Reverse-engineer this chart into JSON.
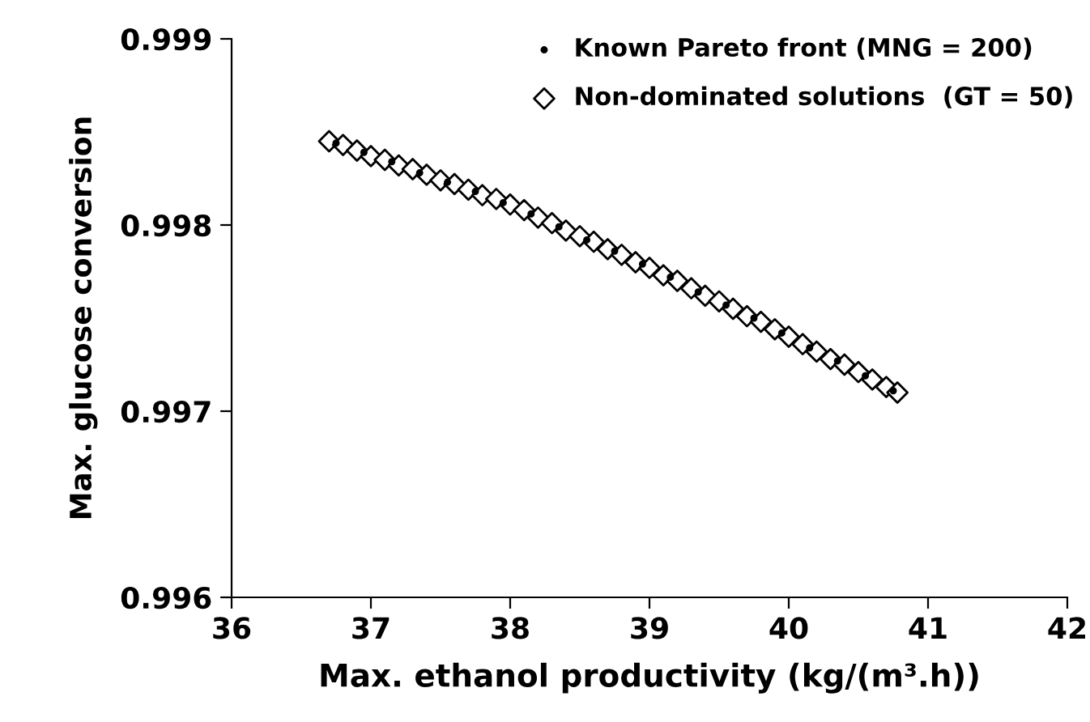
{
  "chart_data": {
    "type": "scatter",
    "xlabel": "Max. ethanol productivity (kg/(m³.h))",
    "ylabel": "Max. glucose conversion",
    "xlim": [
      36,
      42
    ],
    "xticks": [
      36,
      37,
      38,
      39,
      40,
      41,
      42
    ],
    "ylim": [
      0.996,
      0.999
    ],
    "yticks": [
      0.996,
      0.997,
      0.998,
      0.999
    ],
    "grid": false,
    "legend": "top right",
    "series": [
      {
        "name": "Known Pareto front (MNG = 200)",
        "color": "#000000",
        "marker": "circle",
        "x": [
          36.75,
          36.95,
          37.15,
          37.35,
          37.55,
          37.75,
          37.95,
          38.15,
          38.35,
          38.55,
          38.75,
          38.95,
          39.15,
          39.35,
          39.55,
          39.75,
          39.95,
          40.15,
          40.35,
          40.55,
          40.75
        ],
        "values": [
          0.99844,
          0.99839,
          0.99834,
          0.99828,
          0.99823,
          0.99818,
          0.99812,
          0.99806,
          0.99799,
          0.99792,
          0.99786,
          0.99779,
          0.99772,
          0.99764,
          0.99757,
          0.9975,
          0.99742,
          0.99734,
          0.99727,
          0.99719,
          0.99711
        ]
      },
      {
        "name": "Non-dominated solutions  (GT = 50)",
        "color": "#000000",
        "marker": "diamond",
        "x": [
          36.7,
          36.8,
          36.9,
          37.0,
          37.1,
          37.2,
          37.3,
          37.4,
          37.5,
          37.6,
          37.7,
          37.8,
          37.9,
          38.0,
          38.1,
          38.2,
          38.3,
          38.4,
          38.5,
          38.6,
          38.7,
          38.8,
          38.9,
          39.0,
          39.1,
          39.2,
          39.3,
          39.4,
          39.5,
          39.6,
          39.7,
          39.8,
          39.9,
          40.0,
          40.1,
          40.2,
          40.3,
          40.4,
          40.5,
          40.6,
          40.7,
          40.78
        ],
        "values": [
          0.99845,
          0.99843,
          0.9984,
          0.99837,
          0.99835,
          0.99832,
          0.9983,
          0.99827,
          0.99824,
          0.99822,
          0.99819,
          0.99816,
          0.99814,
          0.99811,
          0.99808,
          0.99804,
          0.99801,
          0.99797,
          0.99794,
          0.99791,
          0.99787,
          0.99784,
          0.9978,
          0.99777,
          0.99773,
          0.9977,
          0.99766,
          0.99762,
          0.99759,
          0.99755,
          0.99751,
          0.99748,
          0.99744,
          0.9974,
          0.99736,
          0.99732,
          0.99728,
          0.99725,
          0.99721,
          0.99717,
          0.99713,
          0.9971
        ]
      }
    ]
  }
}
